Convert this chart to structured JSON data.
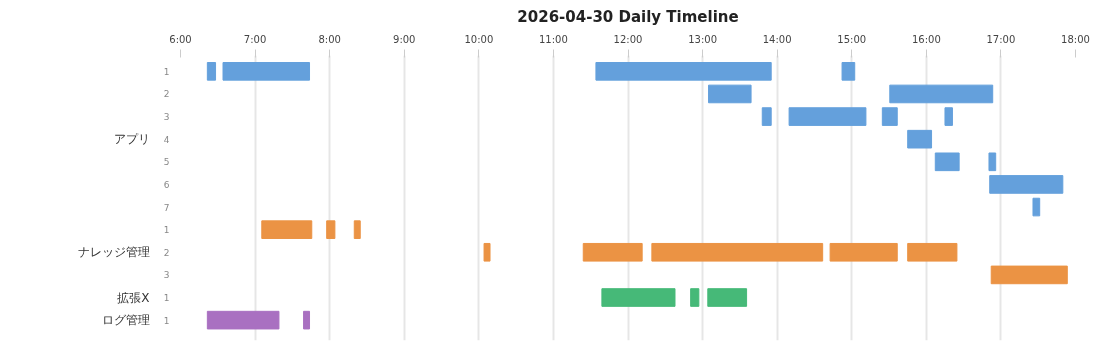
{
  "chart_data": {
    "type": "bar",
    "orientation": "horizontal",
    "title": "2026-04-30 Daily Timeline",
    "categories": [
      "1",
      "2",
      "3",
      "4",
      "5",
      "6",
      "7",
      "1",
      "2",
      "3",
      "1",
      "1"
    ],
    "annotations": [
      "アプリ",
      "ナレッジ管理",
      "拡張X",
      "ログ管理"
    ],
    "xlim": [
      6,
      18
    ],
    "xticks": [
      {
        "value": 6,
        "label": "6:00"
      },
      {
        "value": 7,
        "label": "7:00"
      },
      {
        "value": 8,
        "label": "8:00"
      },
      {
        "value": 9,
        "label": "9:00"
      },
      {
        "value": 10,
        "label": "10:00"
      },
      {
        "value": 11,
        "label": "11:00"
      },
      {
        "value": 12,
        "label": "12:00"
      },
      {
        "value": 13,
        "label": "13:00"
      },
      {
        "value": 14,
        "label": "14:00"
      },
      {
        "value": 15,
        "label": "15:00"
      },
      {
        "value": 16,
        "label": "16:00"
      },
      {
        "value": 17,
        "label": "17:00"
      },
      {
        "value": 18,
        "label": "18:00"
      }
    ],
    "grid": "x",
    "series": [
      {
        "base": [
          6.36,
          13.08,
          13.8,
          15.75,
          16.12,
          16.85,
          17.43,
          7.09,
          10.07,
          16.87,
          11.65,
          6.36
        ],
        "values": [
          0.11,
          0.57,
          0.12,
          0.32,
          0.32,
          0.98,
          0.09,
          0.67,
          0.08,
          1.02,
          0.98,
          0.96
        ],
        "colors": [
          "#64a0dc",
          "#64a0dc",
          "#64a0dc",
          "#64a0dc",
          "#64a0dc",
          "#64a0dc",
          "#64a0dc",
          "#eb9344",
          "#eb9344",
          "#eb9344",
          "#46b978",
          "#a970c1"
        ]
      },
      {
        "base": [
          6.57,
          15.51,
          14.16,
          null,
          16.84,
          null,
          null,
          7.96,
          11.4,
          null,
          12.84,
          7.65
        ],
        "values": [
          1.16,
          1.38,
          1.03,
          null,
          0.09,
          null,
          null,
          0.11,
          0.79,
          null,
          0.11,
          0.08
        ],
        "colors": [
          "#64a0dc",
          "#64a0dc",
          "#64a0dc",
          "#64a0dc",
          "#64a0dc",
          "#64a0dc",
          "#64a0dc",
          "#eb9344",
          "#eb9344",
          "#eb9344",
          "#46b978",
          "#a970c1"
        ]
      },
      {
        "base": [
          11.57,
          null,
          15.41,
          null,
          null,
          null,
          null,
          8.33,
          12.32,
          null,
          13.07,
          null
        ],
        "values": [
          2.35,
          null,
          0.2,
          null,
          null,
          null,
          null,
          0.08,
          2.29,
          null,
          0.52,
          null
        ],
        "colors": [
          "#64a0dc",
          "#64a0dc",
          "#64a0dc",
          "#64a0dc",
          "#64a0dc",
          "#64a0dc",
          "#64a0dc",
          "#eb9344",
          "#eb9344",
          "#eb9344",
          "#46b978",
          "#a970c1"
        ]
      },
      {
        "base": [
          14.87,
          null,
          16.25,
          null,
          null,
          null,
          null,
          null,
          14.71,
          null,
          null,
          null
        ],
        "values": [
          0.17,
          null,
          0.1,
          null,
          null,
          null,
          null,
          null,
          0.9,
          null,
          null,
          null
        ],
        "colors": [
          "#64a0dc",
          "#64a0dc",
          "#64a0dc",
          "#64a0dc",
          "#64a0dc",
          "#64a0dc",
          "#64a0dc",
          "#eb9344",
          "#eb9344",
          "#eb9344",
          "#46b978",
          "#a970c1"
        ]
      },
      {
        "base": [
          null,
          null,
          null,
          null,
          null,
          null,
          null,
          null,
          15.75,
          null,
          null,
          null
        ],
        "values": [
          null,
          null,
          null,
          null,
          null,
          null,
          null,
          null,
          0.66,
          null,
          null,
          null
        ],
        "colors": [
          "#64a0dc",
          "#64a0dc",
          "#64a0dc",
          "#64a0dc",
          "#64a0dc",
          "#64a0dc",
          "#64a0dc",
          "#eb9344",
          "#eb9344",
          "#eb9344",
          "#46b978",
          "#a970c1"
        ]
      }
    ]
  }
}
